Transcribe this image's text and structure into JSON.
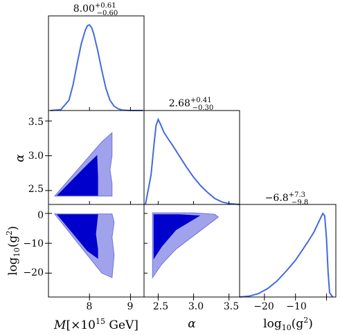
{
  "chart_data": {
    "type": "corner",
    "parameters": [
      {
        "key": "M",
        "range": [
          7.0,
          9.33
        ],
        "ticks": [
          8,
          9
        ],
        "label": {
          "main": "M",
          "bracket_open": "[×10",
          "exp": "15",
          "bracket_close": " GeV]"
        }
      },
      {
        "key": "alpha",
        "range": [
          2.3,
          3.65
        ],
        "ticks": [
          2.5,
          3.0,
          3.5
        ],
        "label": {
          "main": "α"
        }
      },
      {
        "key": "log10_g2",
        "range": [
          -28,
          3
        ],
        "ticks": [
          -20,
          -10,
          0
        ],
        "label": {
          "main": "log",
          "sub": "10",
          "arg_open": "(g",
          "exp": "2",
          "arg_close": ")"
        }
      }
    ],
    "summaries": [
      {
        "param": "M",
        "median": "8.00",
        "plus": "+0.61",
        "minus": "−0.60"
      },
      {
        "param": "alpha",
        "median": "2.68",
        "plus": "+0.41",
        "minus": "−0.30"
      },
      {
        "param": "log10_g2",
        "median": "−6.8",
        "plus": "+7.3",
        "minus": "−9.8"
      }
    ],
    "tick_labels": {
      "M": [
        "8",
        "9"
      ],
      "alpha_x": [
        "2.5",
        "3.0",
        "3.5"
      ],
      "alpha_y": [
        "2.5",
        "3.0",
        "3.5"
      ],
      "log10_g2_x": [
        "−20",
        "−10"
      ],
      "log10_g2_y": [
        "0",
        "−10",
        "−20"
      ]
    },
    "marginals": [
      {
        "param": "M",
        "x": [
          7.05,
          7.3,
          7.5,
          7.6,
          7.7,
          7.8,
          7.9,
          7.95,
          8.0,
          8.05,
          8.1,
          8.2,
          8.3,
          8.4,
          8.5,
          8.6,
          8.7,
          8.8,
          9.0,
          9.3
        ],
        "density": [
          0.0,
          0.01,
          0.12,
          0.3,
          0.55,
          0.78,
          0.94,
          0.99,
          1.0,
          0.97,
          0.9,
          0.7,
          0.47,
          0.26,
          0.12,
          0.05,
          0.02,
          0.005,
          0.0,
          0.0
        ]
      },
      {
        "param": "alpha",
        "x": [
          2.32,
          2.4,
          2.44,
          2.47,
          2.5,
          2.53,
          2.58,
          2.65,
          2.7,
          2.8,
          2.9,
          3.0,
          3.1,
          3.2,
          3.3,
          3.4,
          3.5,
          3.65
        ],
        "density": [
          0.0,
          0.35,
          0.7,
          0.93,
          1.0,
          0.95,
          0.85,
          0.76,
          0.7,
          0.57,
          0.44,
          0.32,
          0.22,
          0.14,
          0.07,
          0.03,
          0.01,
          0.0
        ]
      },
      {
        "param": "log10_g2",
        "x": [
          -28,
          -25,
          -22,
          -19,
          -16,
          -13,
          -10,
          -8,
          -6,
          -4,
          -3,
          -2,
          -1.2,
          -0.6,
          0.0,
          0.5,
          1.0,
          2.0
        ],
        "density": [
          0.0,
          0.01,
          0.04,
          0.1,
          0.19,
          0.31,
          0.44,
          0.55,
          0.66,
          0.78,
          0.86,
          0.94,
          1.0,
          0.97,
          0.7,
          0.3,
          0.05,
          0.0
        ]
      }
    ],
    "contours": [
      {
        "x": "M",
        "y": "alpha",
        "outer": [
          [
            7.15,
            2.42
          ],
          [
            8.55,
            2.42
          ],
          [
            8.55,
            2.6
          ],
          [
            8.5,
            2.8
          ],
          [
            8.55,
            3.0
          ],
          [
            8.55,
            3.33
          ],
          [
            8.3,
            3.2
          ]
        ],
        "inner": [
          [
            7.22,
            2.43
          ],
          [
            8.2,
            2.43
          ],
          [
            8.2,
            2.7
          ],
          [
            8.18,
            3.0
          ],
          [
            7.95,
            2.87
          ]
        ]
      },
      {
        "x": "M",
        "y": "log10_g2",
        "outer": [
          [
            7.15,
            -0.2
          ],
          [
            8.55,
            -0.2
          ],
          [
            8.6,
            -3
          ],
          [
            8.55,
            -8
          ],
          [
            8.6,
            -14
          ],
          [
            8.55,
            -21.5
          ],
          [
            8.3,
            -20
          ]
        ],
        "inner": [
          [
            7.22,
            -0.4
          ],
          [
            8.2,
            -0.4
          ],
          [
            8.15,
            -7
          ],
          [
            8.2,
            -12
          ],
          [
            8.2,
            -15
          ],
          [
            7.95,
            -12.5
          ]
        ]
      },
      {
        "x": "alpha",
        "y": "log10_g2",
        "outer": [
          [
            2.42,
            -21.5
          ],
          [
            2.42,
            0.2
          ],
          [
            3.0,
            0.2
          ],
          [
            3.3,
            -0.3
          ],
          [
            3.35,
            -1.2
          ],
          [
            2.75,
            -12
          ],
          [
            2.55,
            -17
          ]
        ],
        "inner": [
          [
            2.44,
            -15
          ],
          [
            2.44,
            -0.4
          ],
          [
            2.8,
            -0.4
          ],
          [
            3.08,
            -0.8
          ],
          [
            2.75,
            -5.5
          ],
          [
            2.55,
            -11
          ]
        ]
      }
    ],
    "colors": {
      "line": "#4169e1",
      "contour_inner": "#0000cd",
      "contour_outer": "#a0a3ec",
      "contour_edge": "#6e73d8",
      "frame": "#000000"
    }
  }
}
